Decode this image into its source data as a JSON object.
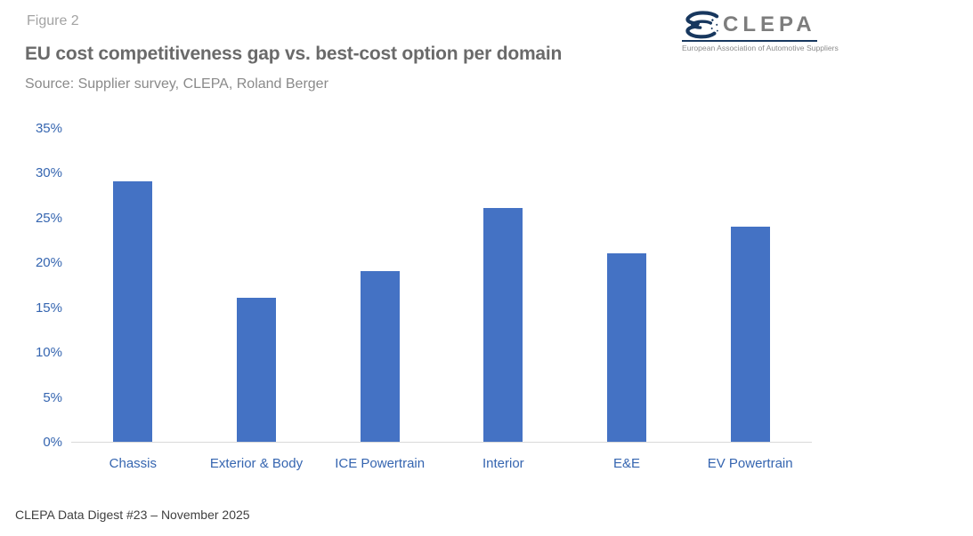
{
  "figure_label": "Figure 2",
  "title": "EU cost competitiveness gap vs. best-cost option per domain",
  "source": "Source: Supplier survey, CLEPA, Roland Berger",
  "footer": "CLEPA Data Digest #23 – November 2025",
  "logo": {
    "wordmark": "CLEPA",
    "caption": "European Association of Automotive Suppliers",
    "navy": "#17375e",
    "gray": "#7d7d7d"
  },
  "colors": {
    "bar": "#4472c4",
    "tick_label": "#3565b0",
    "title": "#6a6a6a",
    "figure_label": "#a3a3a3",
    "source": "#8a8a8a",
    "axis_line": "#d9d9d9",
    "footer": "#404040"
  },
  "chart_data": {
    "type": "bar",
    "categories": [
      "Chassis",
      "Exterior & Body",
      "ICE Powertrain",
      "Interior",
      "E&E",
      "EV Powertrain"
    ],
    "values": [
      29,
      16,
      19,
      26,
      21,
      24
    ],
    "unit": "%",
    "title": "EU cost competitiveness gap vs. best-cost option per domain",
    "xlabel": "",
    "ylabel": "",
    "ylim": [
      0,
      35
    ],
    "ytick_step": 5,
    "ytick_labels": [
      "0%",
      "5%",
      "10%",
      "15%",
      "20%",
      "25%",
      "30%",
      "35%"
    ],
    "grid": false,
    "legend": "none",
    "bar_color": "#4472c4"
  }
}
